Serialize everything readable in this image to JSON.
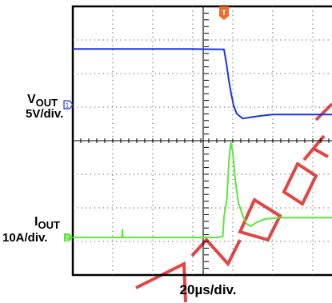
{
  "chart_data": {
    "type": "line",
    "title": "",
    "xlabel": "20µs/div.",
    "trigger_marker": "T",
    "grid": true,
    "colors": {
      "vout": "#1a33e6",
      "iout": "#5ce63a",
      "trigger": "#f06a2a",
      "watermark": "#e03030"
    },
    "series": [
      {
        "channel": "1",
        "label_main": "V",
        "label_sub": "OUT",
        "scale": "5V/div.",
        "units": "div",
        "points": [
          [
            0,
            6.73
          ],
          [
            1.0,
            6.73
          ],
          [
            2.0,
            6.73
          ],
          [
            3.0,
            6.73
          ],
          [
            3.78,
            6.72
          ],
          [
            3.84,
            6.3
          ],
          [
            3.9,
            5.8
          ],
          [
            3.96,
            5.4
          ],
          [
            4.02,
            5.05
          ],
          [
            4.1,
            4.8
          ],
          [
            4.25,
            4.66
          ],
          [
            4.45,
            4.7
          ],
          [
            4.7,
            4.74
          ],
          [
            5.0,
            4.78
          ],
          [
            5.5,
            4.78
          ],
          [
            6.0,
            4.78
          ],
          [
            6.6,
            4.78
          ]
        ]
      },
      {
        "channel": "2",
        "label_main": "I",
        "label_sub": "OUT",
        "scale": "10A/div.",
        "units": "div",
        "points": [
          [
            0,
            0.17
          ],
          [
            1.0,
            0.17
          ],
          [
            1.23,
            0.17
          ],
          [
            1.24,
            0.4
          ],
          [
            1.25,
            0.17
          ],
          [
            2.5,
            0.17
          ],
          [
            3.6,
            0.17
          ],
          [
            3.75,
            0.2
          ],
          [
            3.78,
            0.78
          ],
          [
            3.85,
            1.3
          ],
          [
            3.91,
            2.55
          ],
          [
            3.95,
            3.0
          ],
          [
            4.0,
            2.7
          ],
          [
            4.06,
            1.9
          ],
          [
            4.14,
            1.2
          ],
          [
            4.24,
            0.85
          ],
          [
            4.34,
            0.58
          ],
          [
            4.45,
            0.5
          ],
          [
            4.6,
            0.62
          ],
          [
            4.8,
            0.72
          ],
          [
            5.2,
            0.76
          ],
          [
            5.8,
            0.76
          ],
          [
            6.6,
            0.76
          ]
        ]
      }
    ]
  }
}
